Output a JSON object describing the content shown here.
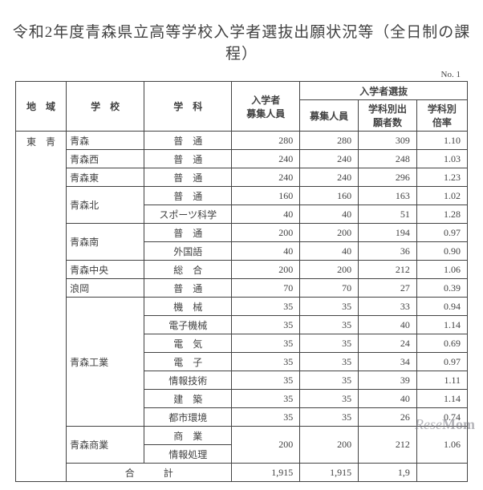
{
  "title": "令和2年度青森県立高等学校入学者選抜出願状況等（全日制の課程）",
  "page_no": "No. 1",
  "headers": {
    "region": "地　域",
    "school": "学　校",
    "department": "学　科",
    "capacity": "入学者\n募集人員",
    "group": "入学者選抜",
    "recruit": "募集人員",
    "applicants": "学科別出\n願者数",
    "ratio": "学科別\n倍率"
  },
  "region_label": "東　青",
  "rows": [
    {
      "school": "青森",
      "dept": "普　通",
      "cap": "280",
      "rec": "280",
      "app": "309",
      "rate": "1.10"
    },
    {
      "school": "青森西",
      "dept": "普　通",
      "cap": "240",
      "rec": "240",
      "app": "248",
      "rate": "1.03"
    },
    {
      "school": "青森東",
      "dept": "普　通",
      "cap": "240",
      "rec": "240",
      "app": "296",
      "rate": "1.23"
    },
    {
      "school": "青森北",
      "dept": "普　通",
      "cap": "160",
      "rec": "160",
      "app": "163",
      "rate": "1.02",
      "school_rowspan": 2
    },
    {
      "dept": "スポーツ科学",
      "cap": "40",
      "rec": "40",
      "app": "51",
      "rate": "1.28"
    },
    {
      "school": "青森南",
      "dept": "普　通",
      "cap": "200",
      "rec": "200",
      "app": "194",
      "rate": "0.97",
      "school_rowspan": 2
    },
    {
      "dept": "外国語",
      "cap": "40",
      "rec": "40",
      "app": "36",
      "rate": "0.90"
    },
    {
      "school": "青森中央",
      "dept": "総　合",
      "cap": "200",
      "rec": "200",
      "app": "212",
      "rate": "1.06"
    },
    {
      "school": "浪岡",
      "dept": "普　通",
      "cap": "70",
      "rec": "70",
      "app": "27",
      "rate": "0.39"
    },
    {
      "school": "青森工業",
      "dept": "機　械",
      "cap": "35",
      "rec": "35",
      "app": "33",
      "rate": "0.94",
      "school_rowspan": 7
    },
    {
      "dept": "電子機械",
      "cap": "35",
      "rec": "35",
      "app": "40",
      "rate": "1.14"
    },
    {
      "dept": "電　気",
      "cap": "35",
      "rec": "35",
      "app": "24",
      "rate": "0.69"
    },
    {
      "dept": "電　子",
      "cap": "35",
      "rec": "35",
      "app": "34",
      "rate": "0.97"
    },
    {
      "dept": "情報技術",
      "cap": "35",
      "rec": "35",
      "app": "39",
      "rate": "1.11"
    },
    {
      "dept": "建　築",
      "cap": "35",
      "rec": "35",
      "app": "40",
      "rate": "1.14"
    },
    {
      "dept": "都市環境",
      "cap": "35",
      "rec": "35",
      "app": "26",
      "rate": "0.74"
    },
    {
      "school": "青森商業",
      "dept": "商　業",
      "cap": "200",
      "rec": "200",
      "app": "212",
      "rate": "1.06",
      "school_rowspan": 2,
      "num_rowspan": 2
    },
    {
      "dept": "情報処理"
    }
  ],
  "total": {
    "label": "合　　　計",
    "cap": "1,915",
    "rec": "1,915",
    "app": "1,9",
    "rate": ""
  },
  "watermark": {
    "a": "Rese",
    "b": "Mom"
  }
}
